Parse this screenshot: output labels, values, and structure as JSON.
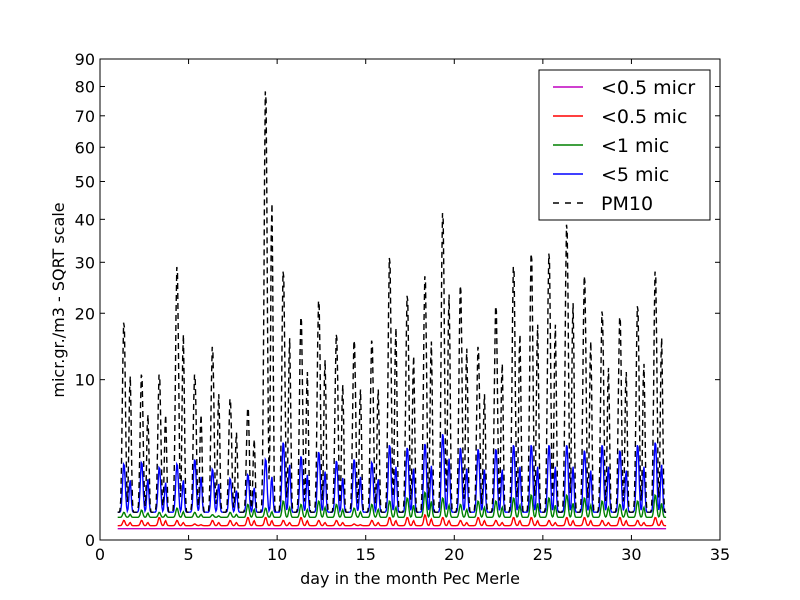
{
  "chart_data": {
    "type": "line",
    "title": "",
    "xlabel": "day in the month Pec Merle",
    "ylabel": "micr.gr./m3 - SQRT scale",
    "y_scale": "sqrt",
    "xlim": [
      0,
      35
    ],
    "ylim": [
      0,
      90
    ],
    "grid": false,
    "legend_position": "top-right",
    "x_ticks": [
      0,
      5,
      10,
      15,
      20,
      25,
      30,
      35
    ],
    "x_tick_labels": [
      "0",
      "5",
      "10",
      "15",
      "20",
      "25",
      "30",
      "35"
    ],
    "y_ticks": [
      0,
      10,
      20,
      30,
      40,
      50,
      60,
      70,
      80,
      90
    ],
    "y_tick_labels": [
      "0",
      "10",
      "20",
      "30",
      "40",
      "50",
      "60",
      "70",
      "80",
      "90"
    ],
    "series": [
      {
        "name": "<0.5 micr",
        "color": "#bf00bf",
        "dash": "solid",
        "base": 0.05,
        "peaks": [
          0.05,
          0.05,
          0.05,
          0.05,
          0.05,
          0.05,
          0.05,
          0.05,
          0.05,
          0.05,
          0.05,
          0.05,
          0.05,
          0.05,
          0.05,
          0.05,
          0.05,
          0.05,
          0.05,
          0.05,
          0.05,
          0.05,
          0.05,
          0.05,
          0.05,
          0.05,
          0.05,
          0.05,
          0.05,
          0.05,
          0.05
        ]
      },
      {
        "name": "<0.5 mic",
        "color": "#ff0000",
        "dash": "solid",
        "base": 0.08,
        "peaks": [
          0.15,
          0.15,
          0.2,
          0.15,
          0.1,
          0.15,
          0.15,
          0.2,
          0.2,
          0.15,
          0.2,
          0.15,
          0.15,
          0.1,
          0.15,
          0.2,
          0.2,
          0.25,
          0.2,
          0.15,
          0.2,
          0.15,
          0.2,
          0.2,
          0.15,
          0.2,
          0.2,
          0.15,
          0.2,
          0.15,
          0.2
        ]
      },
      {
        "name": "<1 mic",
        "color": "#008000",
        "dash": "solid",
        "base": 0.2,
        "peaks": [
          0.3,
          0.35,
          0.3,
          0.4,
          0.3,
          0.25,
          0.3,
          0.5,
          0.4,
          0.6,
          0.5,
          0.6,
          0.5,
          0.4,
          0.5,
          0.6,
          0.7,
          0.9,
          0.7,
          0.5,
          0.6,
          0.6,
          0.7,
          0.8,
          0.7,
          0.8,
          0.7,
          0.6,
          0.5,
          0.6,
          0.8
        ]
      },
      {
        "name": "<5 mic",
        "color": "#0000ff",
        "dash": "solid",
        "base": 0.3,
        "peaks": [
          2.3,
          2.4,
          2.1,
          2.3,
          2.6,
          2.0,
          1.5,
          1.7,
          2.6,
          3.8,
          2.8,
          3.1,
          2.5,
          2.6,
          2.4,
          3.6,
          3.4,
          3.7,
          4.5,
          3.4,
          3.3,
          3.3,
          3.6,
          3.6,
          3.6,
          3.6,
          3.2,
          3.6,
          3.2,
          3.6,
          3.8
        ]
      },
      {
        "name": "PM10",
        "color": "#000000",
        "dash": "dashed",
        "base": 0.3,
        "peaks": [
          19,
          11,
          11,
          30,
          11,
          15,
          8,
          7,
          81,
          29,
          20,
          23,
          17,
          16,
          16,
          32,
          24,
          28,
          43,
          26,
          15,
          22,
          30,
          33,
          33,
          40,
          28,
          21,
          20,
          22,
          29
        ]
      }
    ]
  }
}
